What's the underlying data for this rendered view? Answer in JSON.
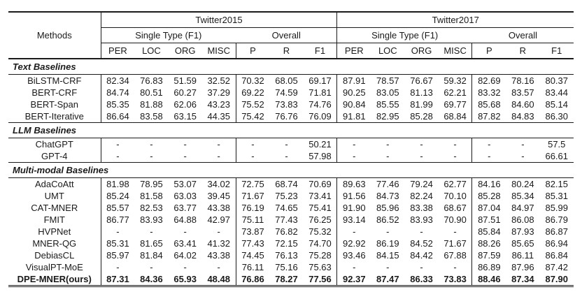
{
  "colors": {
    "text": "#1a1a1a",
    "rule": "#1a1a1a",
    "background": "#ffffff"
  },
  "table": {
    "methods_header": "Methods",
    "groups": [
      {
        "label": "Twitter2015",
        "subgroups": [
          {
            "label": "Single Type (F1)",
            "cols": [
              "PER",
              "LOC",
              "ORG",
              "MISC"
            ]
          },
          {
            "label": "Overall",
            "cols": [
              "P",
              "R",
              "F1"
            ]
          }
        ]
      },
      {
        "label": "Twitter2017",
        "subgroups": [
          {
            "label": "Single Type (F1)",
            "cols": [
              "PER",
              "LOC",
              "ORG",
              "MISC"
            ]
          },
          {
            "label": "Overall",
            "cols": [
              "P",
              "R",
              "F1"
            ]
          }
        ]
      }
    ],
    "sections": [
      {
        "title": "Text Baselines",
        "rows": [
          {
            "method": "BiLSTM-CRF",
            "bold": false,
            "values": [
              "82.34",
              "76.83",
              "51.59",
              "32.52",
              "70.32",
              "68.05",
              "69.17",
              "87.91",
              "78.57",
              "76.67",
              "59.32",
              "82.69",
              "78.16",
              "80.37"
            ]
          },
          {
            "method": "BERT-CRF",
            "bold": false,
            "values": [
              "84.74",
              "80.51",
              "60.27",
              "37.29",
              "69.22",
              "74.59",
              "71.81",
              "90.25",
              "83.05",
              "81.13",
              "62.21",
              "83.32",
              "83.57",
              "83.44"
            ]
          },
          {
            "method": "BERT-Span",
            "bold": false,
            "values": [
              "85.35",
              "81.88",
              "62.06",
              "43.23",
              "75.52",
              "73.83",
              "74.76",
              "90.84",
              "85.55",
              "81.99",
              "69.77",
              "85.68",
              "84.60",
              "85.14"
            ]
          },
          {
            "method": "BERT-Iterative",
            "bold": false,
            "values": [
              "86.64",
              "83.58",
              "63.15",
              "44.35",
              "75.42",
              "76.76",
              "76.09",
              "91.81",
              "82.95",
              "85.28",
              "68.84",
              "87.82",
              "84.83",
              "86.30"
            ]
          }
        ]
      },
      {
        "title": "LLM Baselines",
        "rows": [
          {
            "method": "ChatGPT",
            "bold": false,
            "values": [
              "-",
              "-",
              "-",
              "-",
              "-",
              "-",
              "50.21",
              "-",
              "-",
              "-",
              "-",
              "-",
              "-",
              "57.5"
            ]
          },
          {
            "method": "GPT-4",
            "bold": false,
            "values": [
              "-",
              "-",
              "-",
              "-",
              "-",
              "-",
              "57.98",
              "-",
              "-",
              "-",
              "-",
              "-",
              "-",
              "66.61"
            ]
          }
        ]
      },
      {
        "title": "Multi-modal Baselines",
        "rows": [
          {
            "method": "AdaCoAtt",
            "bold": false,
            "values": [
              "81.98",
              "78.95",
              "53.07",
              "34.02",
              "72.75",
              "68.74",
              "70.69",
              "89.63",
              "77.46",
              "79.24",
              "62.77",
              "84.16",
              "80.24",
              "82.15"
            ]
          },
          {
            "method": "UMT",
            "bold": false,
            "values": [
              "85.24",
              "81.58",
              "63.03",
              "39.45",
              "71.67",
              "75.23",
              "73.41",
              "91.56",
              "84.73",
              "82.24",
              "70.10",
              "85.28",
              "85.34",
              "85.31"
            ]
          },
          {
            "method": "CAT-MNER",
            "bold": false,
            "values": [
              "85.57",
              "82.53",
              "63.77",
              "43.38",
              "76.19",
              "74.65",
              "75.41",
              "91.90",
              "85.96",
              "83.38",
              "68.67",
              "87.04",
              "84.97",
              "85.99"
            ]
          },
          {
            "method": "FMIT",
            "bold": false,
            "values": [
              "86.77",
              "83.93",
              "64.88",
              "42.97",
              "75.11",
              "77.43",
              "76.25",
              "93.14",
              "86.52",
              "83.93",
              "70.90",
              "87.51",
              "86.08",
              "86.79"
            ]
          },
          {
            "method": "HVPNet",
            "bold": false,
            "values": [
              "-",
              "-",
              "-",
              "-",
              "73.87",
              "76.82",
              "75.32",
              "-",
              "-",
              "-",
              "-",
              "85.84",
              "87.93",
              "86.87"
            ]
          },
          {
            "method": "MNER-QG",
            "bold": false,
            "values": [
              "85.31",
              "81.65",
              "63.41",
              "41.32",
              "77.43",
              "72.15",
              "74.70",
              "92.92",
              "86.19",
              "84.52",
              "71.67",
              "88.26",
              "85.65",
              "86.94"
            ]
          },
          {
            "method": "DebiasCL",
            "bold": false,
            "values": [
              "85.97",
              "81.84",
              "64.02",
              "43.38",
              "74.45",
              "76.13",
              "75.28",
              "93.46",
              "84.15",
              "84.42",
              "67.88",
              "87.59",
              "86.11",
              "86.84"
            ]
          },
          {
            "method": "VisualPT-MoE",
            "bold": false,
            "values": [
              "-",
              "-",
              "-",
              "-",
              "76.11",
              "75.16",
              "75.63",
              "-",
              "-",
              "-",
              "-",
              "86.89",
              "87.96",
              "87.42"
            ]
          },
          {
            "method": "DPE-MNER(ours)",
            "bold": true,
            "values": [
              "87.31",
              "84.36",
              "65.93",
              "48.48",
              "76.86",
              "78.27",
              "77.56",
              "92.37",
              "87.47",
              "86.33",
              "73.83",
              "88.46",
              "87.34",
              "87.90"
            ]
          }
        ]
      }
    ]
  }
}
